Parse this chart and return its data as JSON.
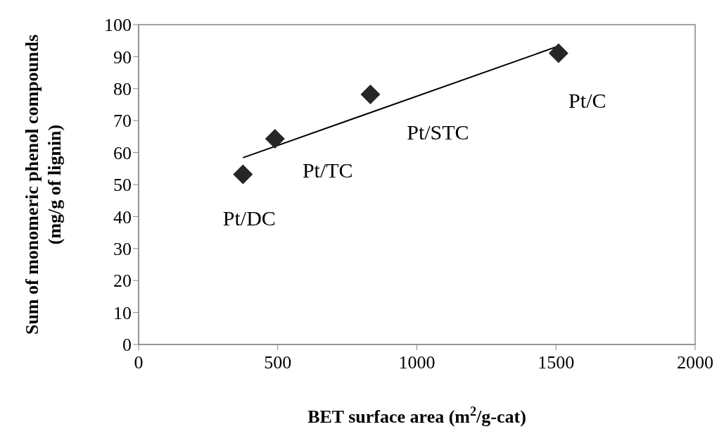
{
  "chart_data": {
    "type": "scatter",
    "xlabel": "BET surface area (m$^{2}$/g-cat)",
    "ylabel": "Sum of monomeric phenol compounds\n(mg/g of lignin)",
    "x": [
      375,
      490,
      833,
      1509
    ],
    "xlim": [
      0,
      2000
    ],
    "xticks": [
      0,
      500,
      1000,
      1500,
      2000
    ],
    "ylim": [
      0,
      100
    ],
    "yticks": [
      0,
      10,
      20,
      30,
      40,
      50,
      60,
      70,
      80,
      90,
      100
    ],
    "line_style": "solid",
    "series": [
      {
        "color": "#262626",
        "marker": "diamond",
        "values": [
          53.2,
          64.3,
          78.2,
          91.1
        ]
      },
      {
        "type": "line",
        "marker": "none",
        "color": "#000000",
        "x": [
          375,
          1509
        ],
        "values": [
          58.4,
          93.3
        ]
      }
    ],
    "annotations": [
      {
        "text": "Pt/DC",
        "x": 375,
        "y": 53.2
      },
      {
        "text": "Pt/TC",
        "x": 490,
        "y": 64.3
      },
      {
        "text": "Pt/STC",
        "x": 833,
        "y": 78.2
      },
      {
        "text": "Pt/C",
        "x": 1509,
        "y": 91.1
      }
    ]
  }
}
